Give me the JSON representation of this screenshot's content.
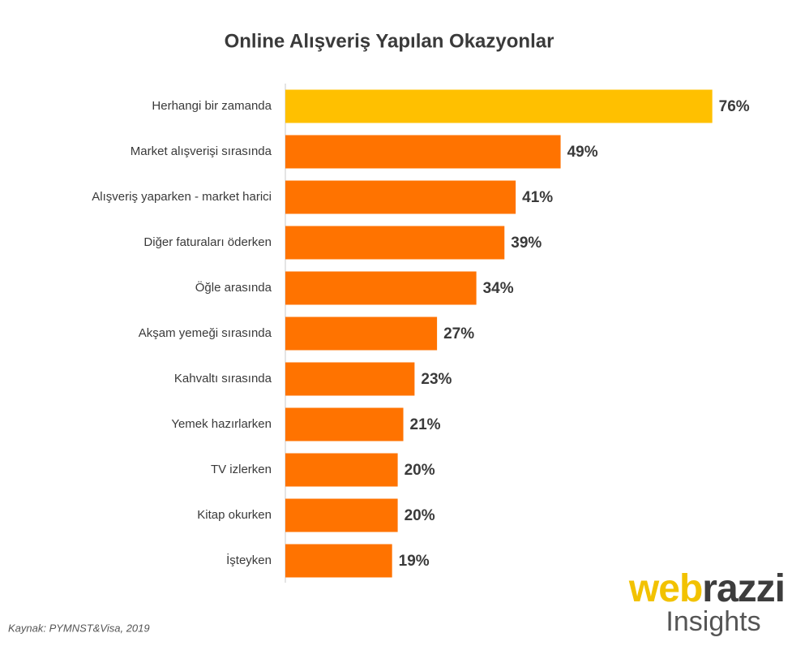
{
  "chart_data": {
    "type": "hbar",
    "title": "Online Alışveriş Yapılan Okazyonlar",
    "categories": [
      "Herhangi bir zamanda",
      "Market alışverişi sırasında",
      "Alışveriş yaparken - market harici",
      "Diğer faturaları öderken",
      "Öğle arasında",
      "Akşam yemeği sırasında",
      "Kahvaltı sırasında",
      "Yemek hazırlarken",
      "TV izlerken",
      "Kitap okurken",
      "İşteyken"
    ],
    "values": [
      76,
      49,
      41,
      39,
      34,
      27,
      23,
      21,
      20,
      20,
      19
    ],
    "value_labels": [
      "76%",
      "49%",
      "41%",
      "39%",
      "34%",
      "27%",
      "23%",
      "21%",
      "20%",
      "20%",
      "19%"
    ],
    "colors": [
      "#ffc000",
      "#ff7300",
      "#ff7300",
      "#ff7300",
      "#ff7300",
      "#ff7300",
      "#ff7300",
      "#ff7300",
      "#ff7300",
      "#ff7300",
      "#ff7300"
    ]
  },
  "source": "Kaynak: PYMNST&Visa, 2019",
  "logo": {
    "first": "web",
    "second": "razzi",
    "tagline": "Insights"
  }
}
